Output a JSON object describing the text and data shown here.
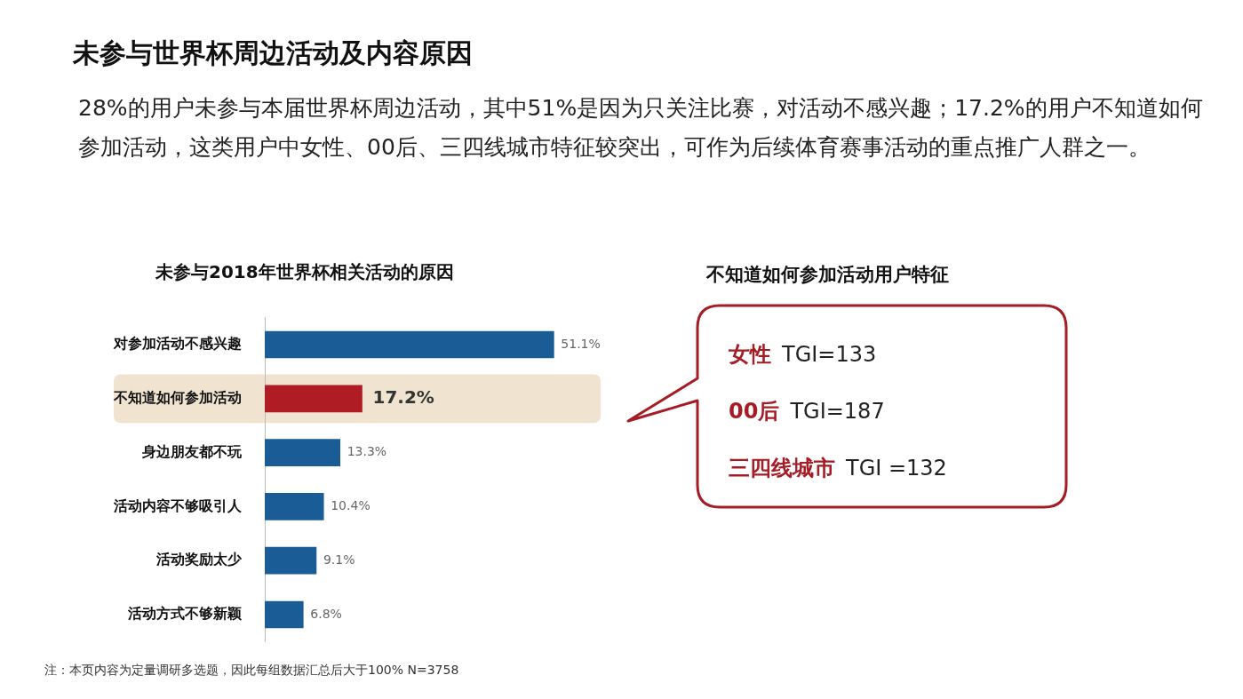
{
  "chart_data": [
    {
      "type": "other",
      "title": "未参与世界杯周边活动及内容原因",
      "subtitle": "28%的用户未参与本届世界杯周边活动，其中51%是因为只关注比赛，对活动不感兴趣；17.2%的用户不知道如何参加活动，这类用户中女性、00后、三四线城市特征较突出，可作为后续体育赛事活动的重点推广人群之一。"
    },
    {
      "type": "bar",
      "orientation": "horizontal",
      "title": "未参与2018年世界杯相关活动的原因",
      "categories": [
        "对参加活动不感兴趣",
        "不知道如何参加活动",
        "身边朋友都不玩",
        "活动内容不够吸引人",
        "活动奖励太少",
        "活动方式不够新颖"
      ],
      "values": [
        51.1,
        17.2,
        13.3,
        10.4,
        9.1,
        6.8
      ],
      "colors": [
        "#1a5c96",
        "#b01c24",
        "#1a5c96",
        "#1a5c96",
        "#1a5c96",
        "#1a5c96"
      ],
      "value_labels": [
        "51.1%",
        "17.2%",
        "13.3%",
        "10.4%",
        "9.1%",
        "6.8%"
      ],
      "bands": [
        {
          "axis": "y",
          "from": "不知道如何参加活动",
          "to": "不知道如何参加活动",
          "color": "#f0e4d0"
        }
      ],
      "annotations": [
        "注：本页内容为定量调研多选题，因此每组数据汇总后大于100%  N=3758"
      ],
      "grid": false,
      "legend": false
    },
    {
      "type": "other",
      "title": "不知道如何参加活动用户特征",
      "annotations": [
        "女性",
        "TGI=133",
        "00后",
        "TGI=187",
        "三四线城市",
        "TGI =132"
      ]
    }
  ]
}
